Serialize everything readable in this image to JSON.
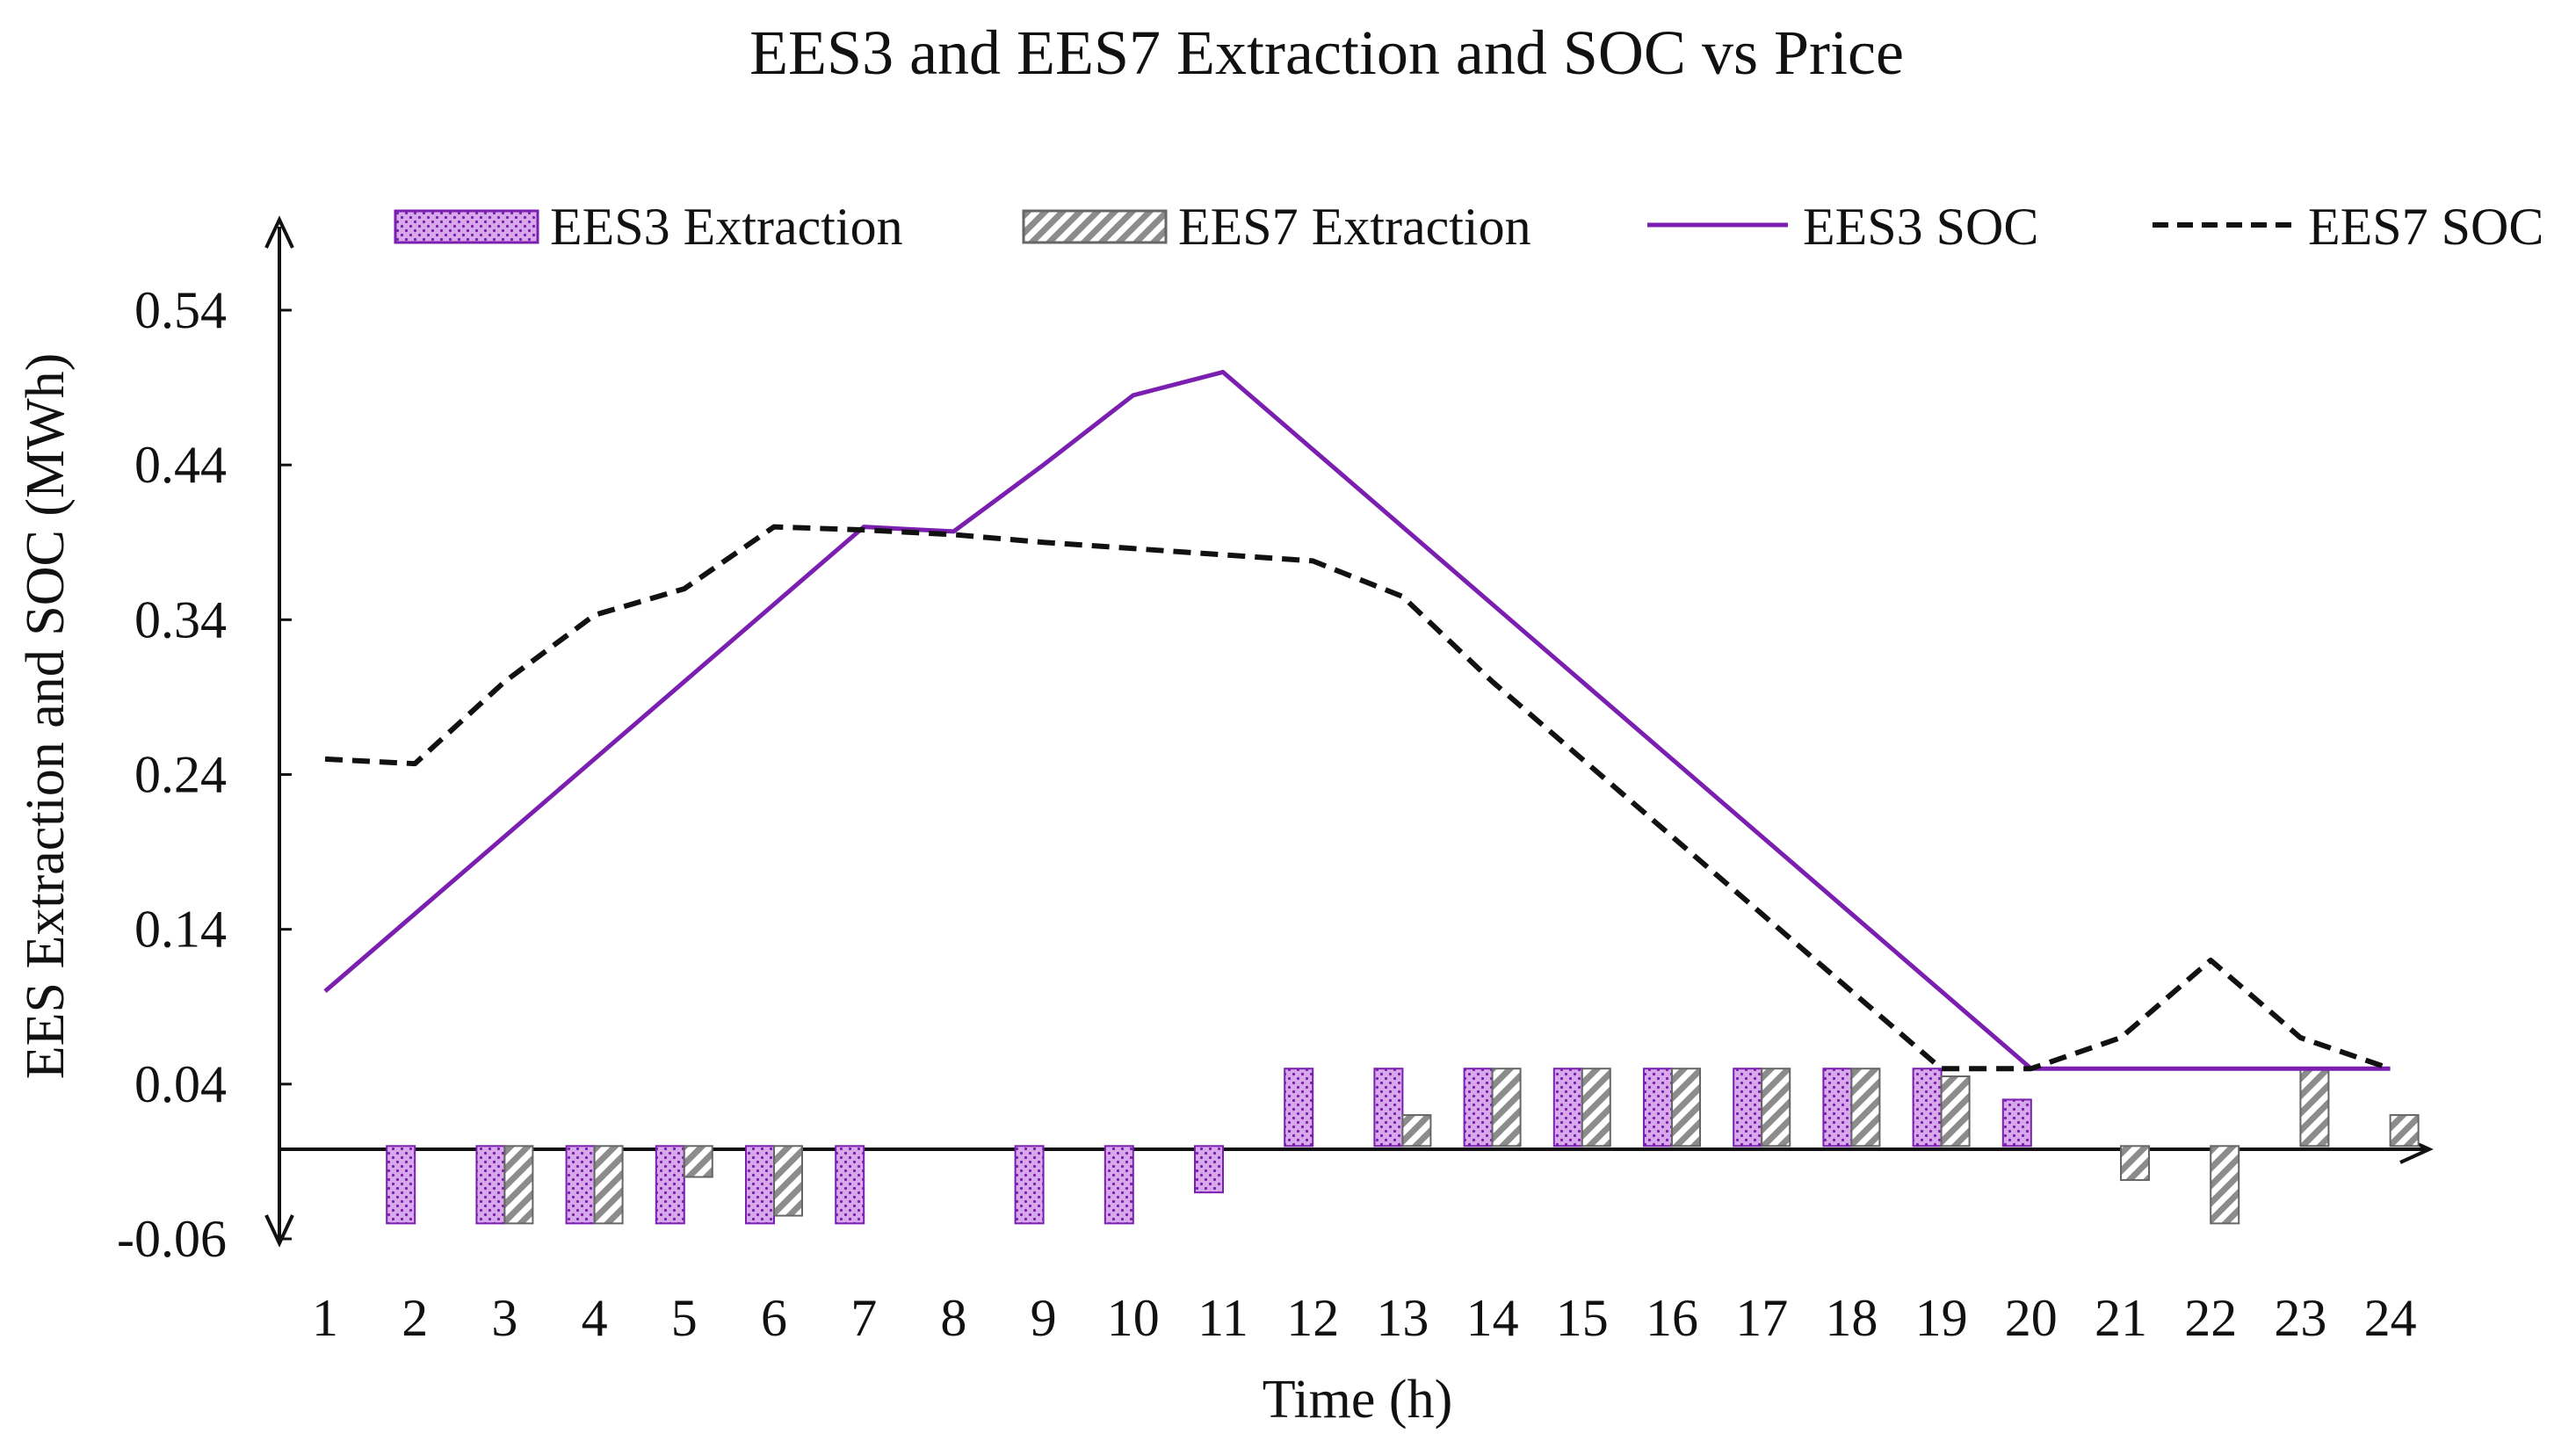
{
  "chart_data": {
    "type": "bar",
    "title": "EES3 and EES7 Extraction and SOC vs Price",
    "xlabel": "Time (h)",
    "ylabel": "EES Extraction and SOC (MWh)",
    "categories": [
      "1",
      "2",
      "3",
      "4",
      "5",
      "6",
      "7",
      "8",
      "9",
      "10",
      "11",
      "12",
      "13",
      "14",
      "15",
      "16",
      "17",
      "18",
      "19",
      "20",
      "21",
      "22",
      "23",
      "24"
    ],
    "ylim": [
      -0.06,
      0.56
    ],
    "yticks": [
      "0.54",
      "0.44",
      "0.34",
      "0.24",
      "0.14",
      "0.04",
      "-0.06"
    ],
    "ytick_values": [
      0.54,
      0.44,
      0.34,
      0.24,
      0.14,
      0.04,
      -0.06
    ],
    "grid": false,
    "legend_position": "top",
    "series": [
      {
        "name": "EES3 Extraction",
        "kind": "bar",
        "color": "#9b2fbf",
        "values": [
          0,
          -0.05,
          -0.05,
          -0.05,
          -0.05,
          -0.05,
          -0.05,
          0,
          -0.05,
          -0.05,
          -0.03,
          0.05,
          0.05,
          0.05,
          0.05,
          0.05,
          0.05,
          0.05,
          0.05,
          0.03,
          0,
          0,
          0,
          0
        ]
      },
      {
        "name": "EES7 Extraction",
        "kind": "bar",
        "color": "#808080",
        "values": [
          0,
          0,
          -0.05,
          -0.05,
          -0.02,
          -0.045,
          0,
          0,
          0,
          0,
          0,
          0,
          0.02,
          0.05,
          0.05,
          0.05,
          0.05,
          0.05,
          0.045,
          0,
          -0.022,
          -0.05,
          0.05,
          0.02
        ]
      },
      {
        "name": "EES3 SOC",
        "kind": "line",
        "color": "#7b1fb0",
        "values": [
          0.1,
          0.15,
          0.2,
          0.25,
          0.3,
          0.35,
          0.4,
          0.397,
          0.44,
          0.485,
          0.5,
          0.45,
          0.4,
          0.35,
          0.3,
          0.25,
          0.2,
          0.15,
          0.1,
          0.05,
          0.05,
          0.05,
          0.05,
          0.05
        ]
      },
      {
        "name": "EES7 SOC",
        "kind": "line",
        "color": "#111111",
        "dash": true,
        "values": [
          0.25,
          0.247,
          0.3,
          0.343,
          0.36,
          0.4,
          0.398,
          0.395,
          0.39,
          0.386,
          0.382,
          0.378,
          0.355,
          0.3,
          0.25,
          0.2,
          0.15,
          0.1,
          0.05,
          0.05,
          0.07,
          0.12,
          0.07,
          0.05
        ]
      }
    ]
  }
}
